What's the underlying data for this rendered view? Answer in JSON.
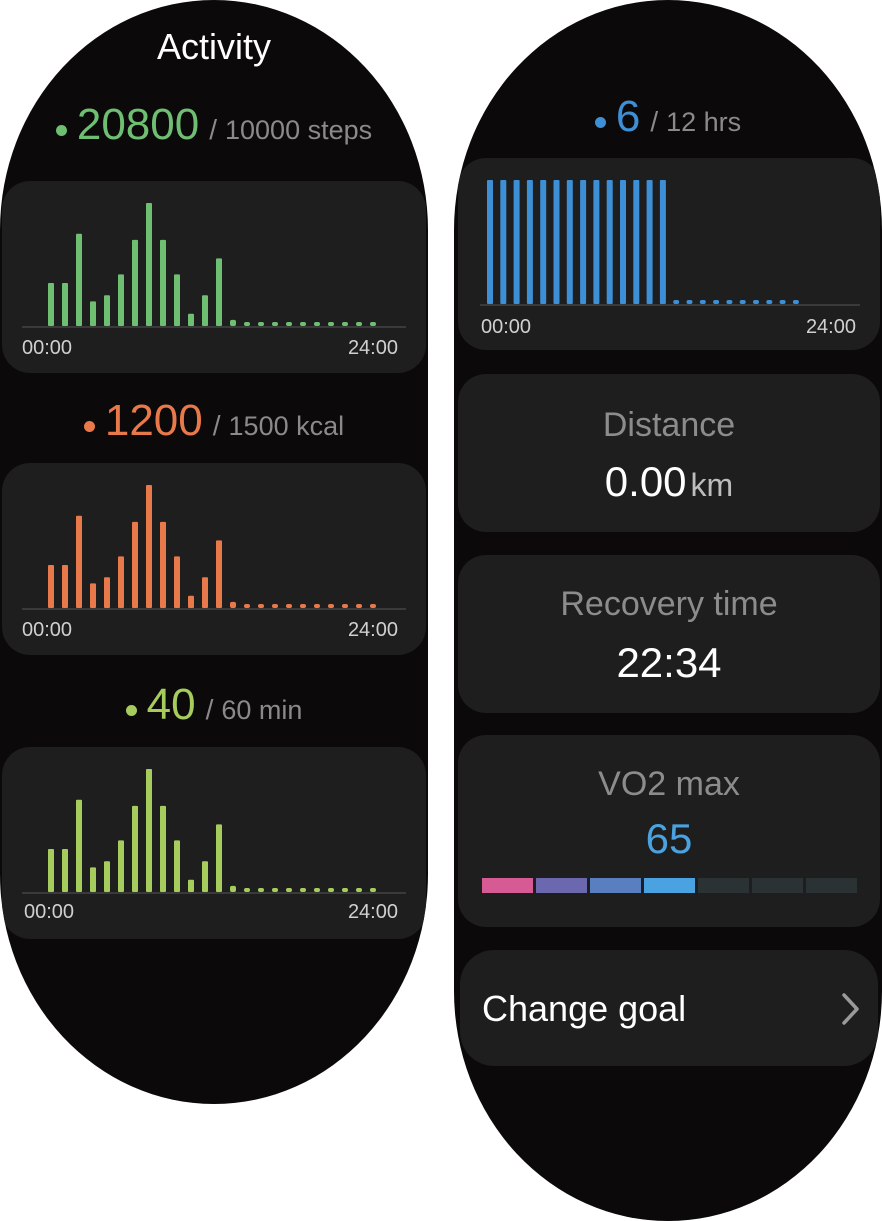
{
  "left": {
    "title": "Activity",
    "steps": {
      "value": "20800",
      "separator": "/",
      "goal": "10000 steps",
      "color": "#6fbf73"
    },
    "calories": {
      "value": "1200",
      "separator": "/",
      "goal": "1500 kcal",
      "color": "#e8794a"
    },
    "minutes": {
      "value": "40",
      "separator": "/",
      "goal": "60 min",
      "color": "#a7cc5e"
    }
  },
  "right": {
    "hours": {
      "value": "6",
      "separator": "/",
      "goal": "12 hrs",
      "color": "#3d8fd6"
    },
    "distance": {
      "label": "Distance",
      "value": "0.00",
      "unit": "km"
    },
    "recovery": {
      "label": "Recovery time",
      "value": "22:34"
    },
    "vo2": {
      "label": "VO2 max",
      "value": "65",
      "value_color": "#4aa3e0",
      "scale_colors": [
        "#d65a94",
        "#6b68b0",
        "#5a7fc0",
        "#4aa3e0",
        "#2a3234",
        "#2a3234",
        "#2a3234"
      ]
    },
    "change_goal": {
      "label": "Change goal",
      "icon": "chevron-right-icon"
    }
  },
  "chart_data": [
    {
      "type": "bar",
      "name": "steps-chart",
      "x_start": "00:00",
      "x_end": "24:00",
      "color": "#6fbf73",
      "values": [
        0.35,
        0.35,
        0.75,
        0.2,
        0.25,
        0.42,
        0.7,
        1.0,
        0.7,
        0.42,
        0.1,
        0.25,
        0.55,
        0.05,
        0.02,
        0.02,
        0.02,
        0.02,
        0.02,
        0.02,
        0.02,
        0.02,
        0.02,
        0.02
      ]
    },
    {
      "type": "bar",
      "name": "calories-chart",
      "x_start": "00:00",
      "x_end": "24:00",
      "color": "#e8794a",
      "values": [
        0.35,
        0.35,
        0.75,
        0.2,
        0.25,
        0.42,
        0.7,
        1.0,
        0.7,
        0.42,
        0.1,
        0.25,
        0.55,
        0.05,
        0.02,
        0.02,
        0.02,
        0.02,
        0.02,
        0.02,
        0.02,
        0.02,
        0.02,
        0.02
      ]
    },
    {
      "type": "bar",
      "name": "minutes-chart",
      "x_start": "00:00",
      "x_end": "24:00",
      "color": "#a7cc5e",
      "values": [
        0.35,
        0.35,
        0.75,
        0.2,
        0.25,
        0.42,
        0.7,
        1.0,
        0.7,
        0.42,
        0.1,
        0.25,
        0.55,
        0.05,
        0.02,
        0.02,
        0.02,
        0.02,
        0.02,
        0.02,
        0.02,
        0.02,
        0.02,
        0.02
      ]
    },
    {
      "type": "bar",
      "name": "hours-chart",
      "x_start": "00:00",
      "x_end": "24:00",
      "color": "#3d8fd6",
      "values": [
        1,
        1,
        1,
        1,
        1,
        1,
        1,
        1,
        1,
        1,
        1,
        1,
        1,
        1,
        0.03,
        0.03,
        0.03,
        0.03,
        0.03,
        0.03,
        0.03,
        0.03,
        0.03,
        0.03
      ]
    }
  ]
}
